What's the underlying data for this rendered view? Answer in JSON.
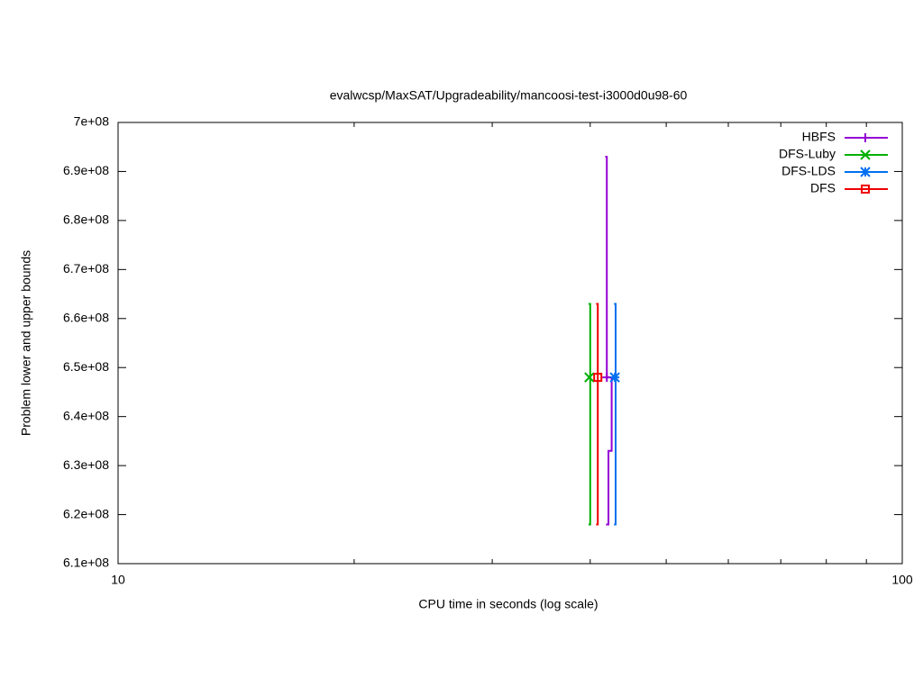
{
  "chart_data": {
    "type": "line",
    "title": "evalwcsp/MaxSAT/Upgradeability/mancoosi-test-i3000d0u98-60",
    "x_label": "CPU time in seconds (log scale)",
    "y_label": "Problem lower and upper bounds",
    "xscale": "log",
    "xlim": [
      10,
      100
    ],
    "xticks": [
      10,
      100
    ],
    "xminorticks": [
      20,
      30,
      40,
      50,
      60,
      70,
      80,
      90
    ],
    "ylim": [
      610000000,
      700000000
    ],
    "yticks": [
      {
        "value": 610000000,
        "label": "6.1e+08"
      },
      {
        "value": 620000000,
        "label": "6.2e+08"
      },
      {
        "value": 630000000,
        "label": "6.3e+08"
      },
      {
        "value": 640000000,
        "label": "6.4e+08"
      },
      {
        "value": 650000000,
        "label": "6.5e+08"
      },
      {
        "value": 660000000,
        "label": "6.6e+08"
      },
      {
        "value": 670000000,
        "label": "6.7e+08"
      },
      {
        "value": 680000000,
        "label": "6.8e+08"
      },
      {
        "value": 690000000,
        "label": "6.9e+08"
      },
      {
        "value": 700000000,
        "label": "7e+08"
      }
    ],
    "grid": false,
    "legend": "top-right",
    "series": [
      {
        "name": "HBFS",
        "color": "#9400d3",
        "marker": "plus",
        "x": [
          41.8,
          42.0,
          42.0,
          null,
          41.9,
          42.2,
          42.2,
          42.6,
          42.6,
          42.0
        ],
        "y": [
          693000000,
          693000000,
          648000000,
          null,
          618000000,
          618000000,
          633000000,
          633000000,
          648000000,
          648000000
        ]
      },
      {
        "name": "DFS-Luby",
        "color": "#00b000",
        "marker": "cross",
        "x": [
          39.8,
          40.0,
          40.0,
          null,
          39.8,
          40.0,
          40.0,
          39.9
        ],
        "y": [
          663000000,
          663000000,
          648000000,
          null,
          618000000,
          618000000,
          648000000,
          648000000
        ]
      },
      {
        "name": "DFS-LDS",
        "color": "#0070f0",
        "marker": "star",
        "x": [
          42.9,
          43.1,
          43.1,
          null,
          42.9,
          43.1,
          43.1,
          43.0
        ],
        "y": [
          663000000,
          663000000,
          648000000,
          null,
          618000000,
          618000000,
          648000000,
          648000000
        ]
      },
      {
        "name": "DFS",
        "color": "#f00000",
        "marker": "square",
        "x": [
          40.7,
          40.9,
          40.9,
          null,
          40.7,
          40.9,
          40.9,
          40.9
        ],
        "y": [
          663000000,
          663000000,
          648000000,
          null,
          618000000,
          618000000,
          648000000,
          648000000
        ]
      }
    ]
  }
}
